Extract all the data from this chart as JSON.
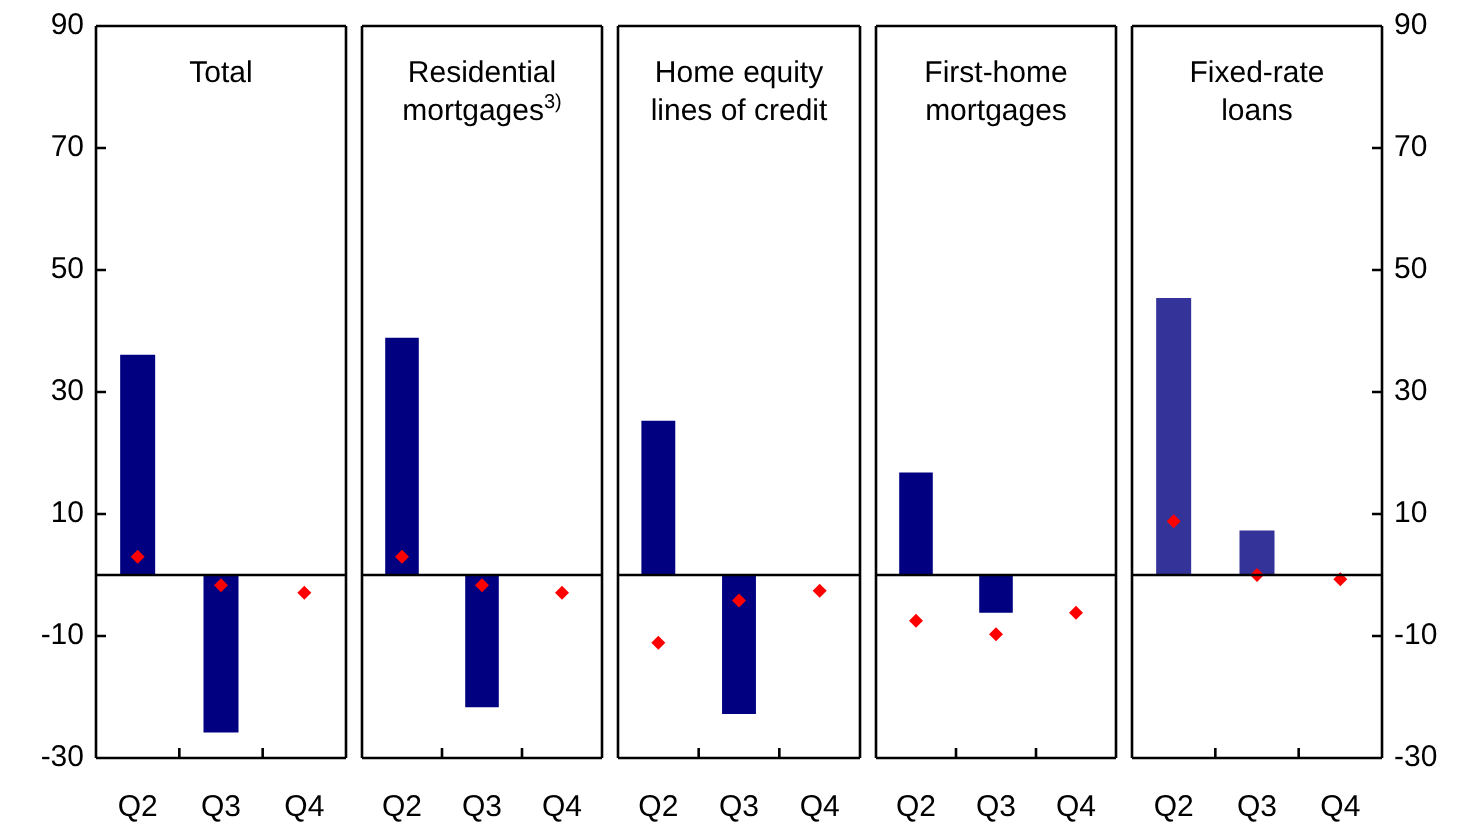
{
  "chart_data": [
    {
      "type": "bar",
      "title": "Total",
      "categories": [
        "Q2",
        "Q3",
        "Q4"
      ],
      "marker": "diamond",
      "ylim": [
        -30,
        90
      ],
      "yticks": [
        -30,
        -10,
        10,
        30,
        50,
        70,
        90
      ],
      "series": [
        {
          "color": "#000080",
          "values": [
            36.1,
            -25.8,
            null
          ]
        },
        {
          "type": "scatter",
          "color": "#ff0000",
          "values": [
            3.0,
            -1.7,
            -2.9
          ]
        }
      ]
    },
    {
      "type": "bar",
      "title": "Residential mortgages$^{3)}$",
      "categories": [
        "Q2",
        "Q3",
        "Q4"
      ],
      "marker": "diamond",
      "ylim": [
        -30,
        90
      ],
      "yticks": [
        -30,
        -10,
        10,
        30,
        50,
        70,
        90
      ],
      "tick_labels": "x",
      "series": [
        {
          "color": "#000080",
          "values": [
            38.9,
            -21.7,
            null
          ]
        },
        {
          "type": "scatter",
          "color": "#ff0000",
          "values": [
            3.0,
            -1.7,
            -2.9
          ]
        }
      ]
    },
    {
      "type": "bar",
      "title": "Home equity lines of credit",
      "categories": [
        "Q2",
        "Q3",
        "Q4"
      ],
      "marker": "diamond",
      "ylim": [
        -30,
        90
      ],
      "yticks": [
        -30,
        -10,
        10,
        30,
        50,
        70,
        90
      ],
      "tick_labels": "x",
      "series": [
        {
          "color": "#000080",
          "values": [
            25.3,
            -22.8,
            null
          ]
        },
        {
          "type": "scatter",
          "color": "#ff0000",
          "values": [
            -11.1,
            -4.2,
            -2.6
          ]
        }
      ]
    },
    {
      "type": "bar",
      "title": "First-home mortgages",
      "categories": [
        "Q2",
        "Q3",
        "Q4"
      ],
      "marker": "diamond",
      "ylim": [
        -30,
        90
      ],
      "yticks": [
        -30,
        -10,
        10,
        30,
        50,
        70,
        90
      ],
      "tick_labels": "x",
      "series": [
        {
          "color": "#000080",
          "values": [
            16.8,
            -6.2,
            null
          ]
        },
        {
          "type": "scatter",
          "color": "#ff0000",
          "values": [
            -7.5,
            -9.7,
            -6.2
          ]
        }
      ]
    },
    {
      "type": "bar",
      "title": "Fixed-rate loans",
      "categories": [
        "Q2",
        "Q3",
        "Q4"
      ],
      "marker": "diamond",
      "ylim": [
        -30,
        90
      ],
      "yticks": [
        -30,
        -10,
        10,
        30,
        50,
        70,
        90
      ],
      "series": [
        {
          "color": "#333399",
          "values": [
            45.4,
            7.3,
            null
          ]
        },
        {
          "type": "scatter",
          "color": "#ff0000",
          "values": [
            8.8,
            0,
            -0.7
          ]
        }
      ]
    }
  ]
}
